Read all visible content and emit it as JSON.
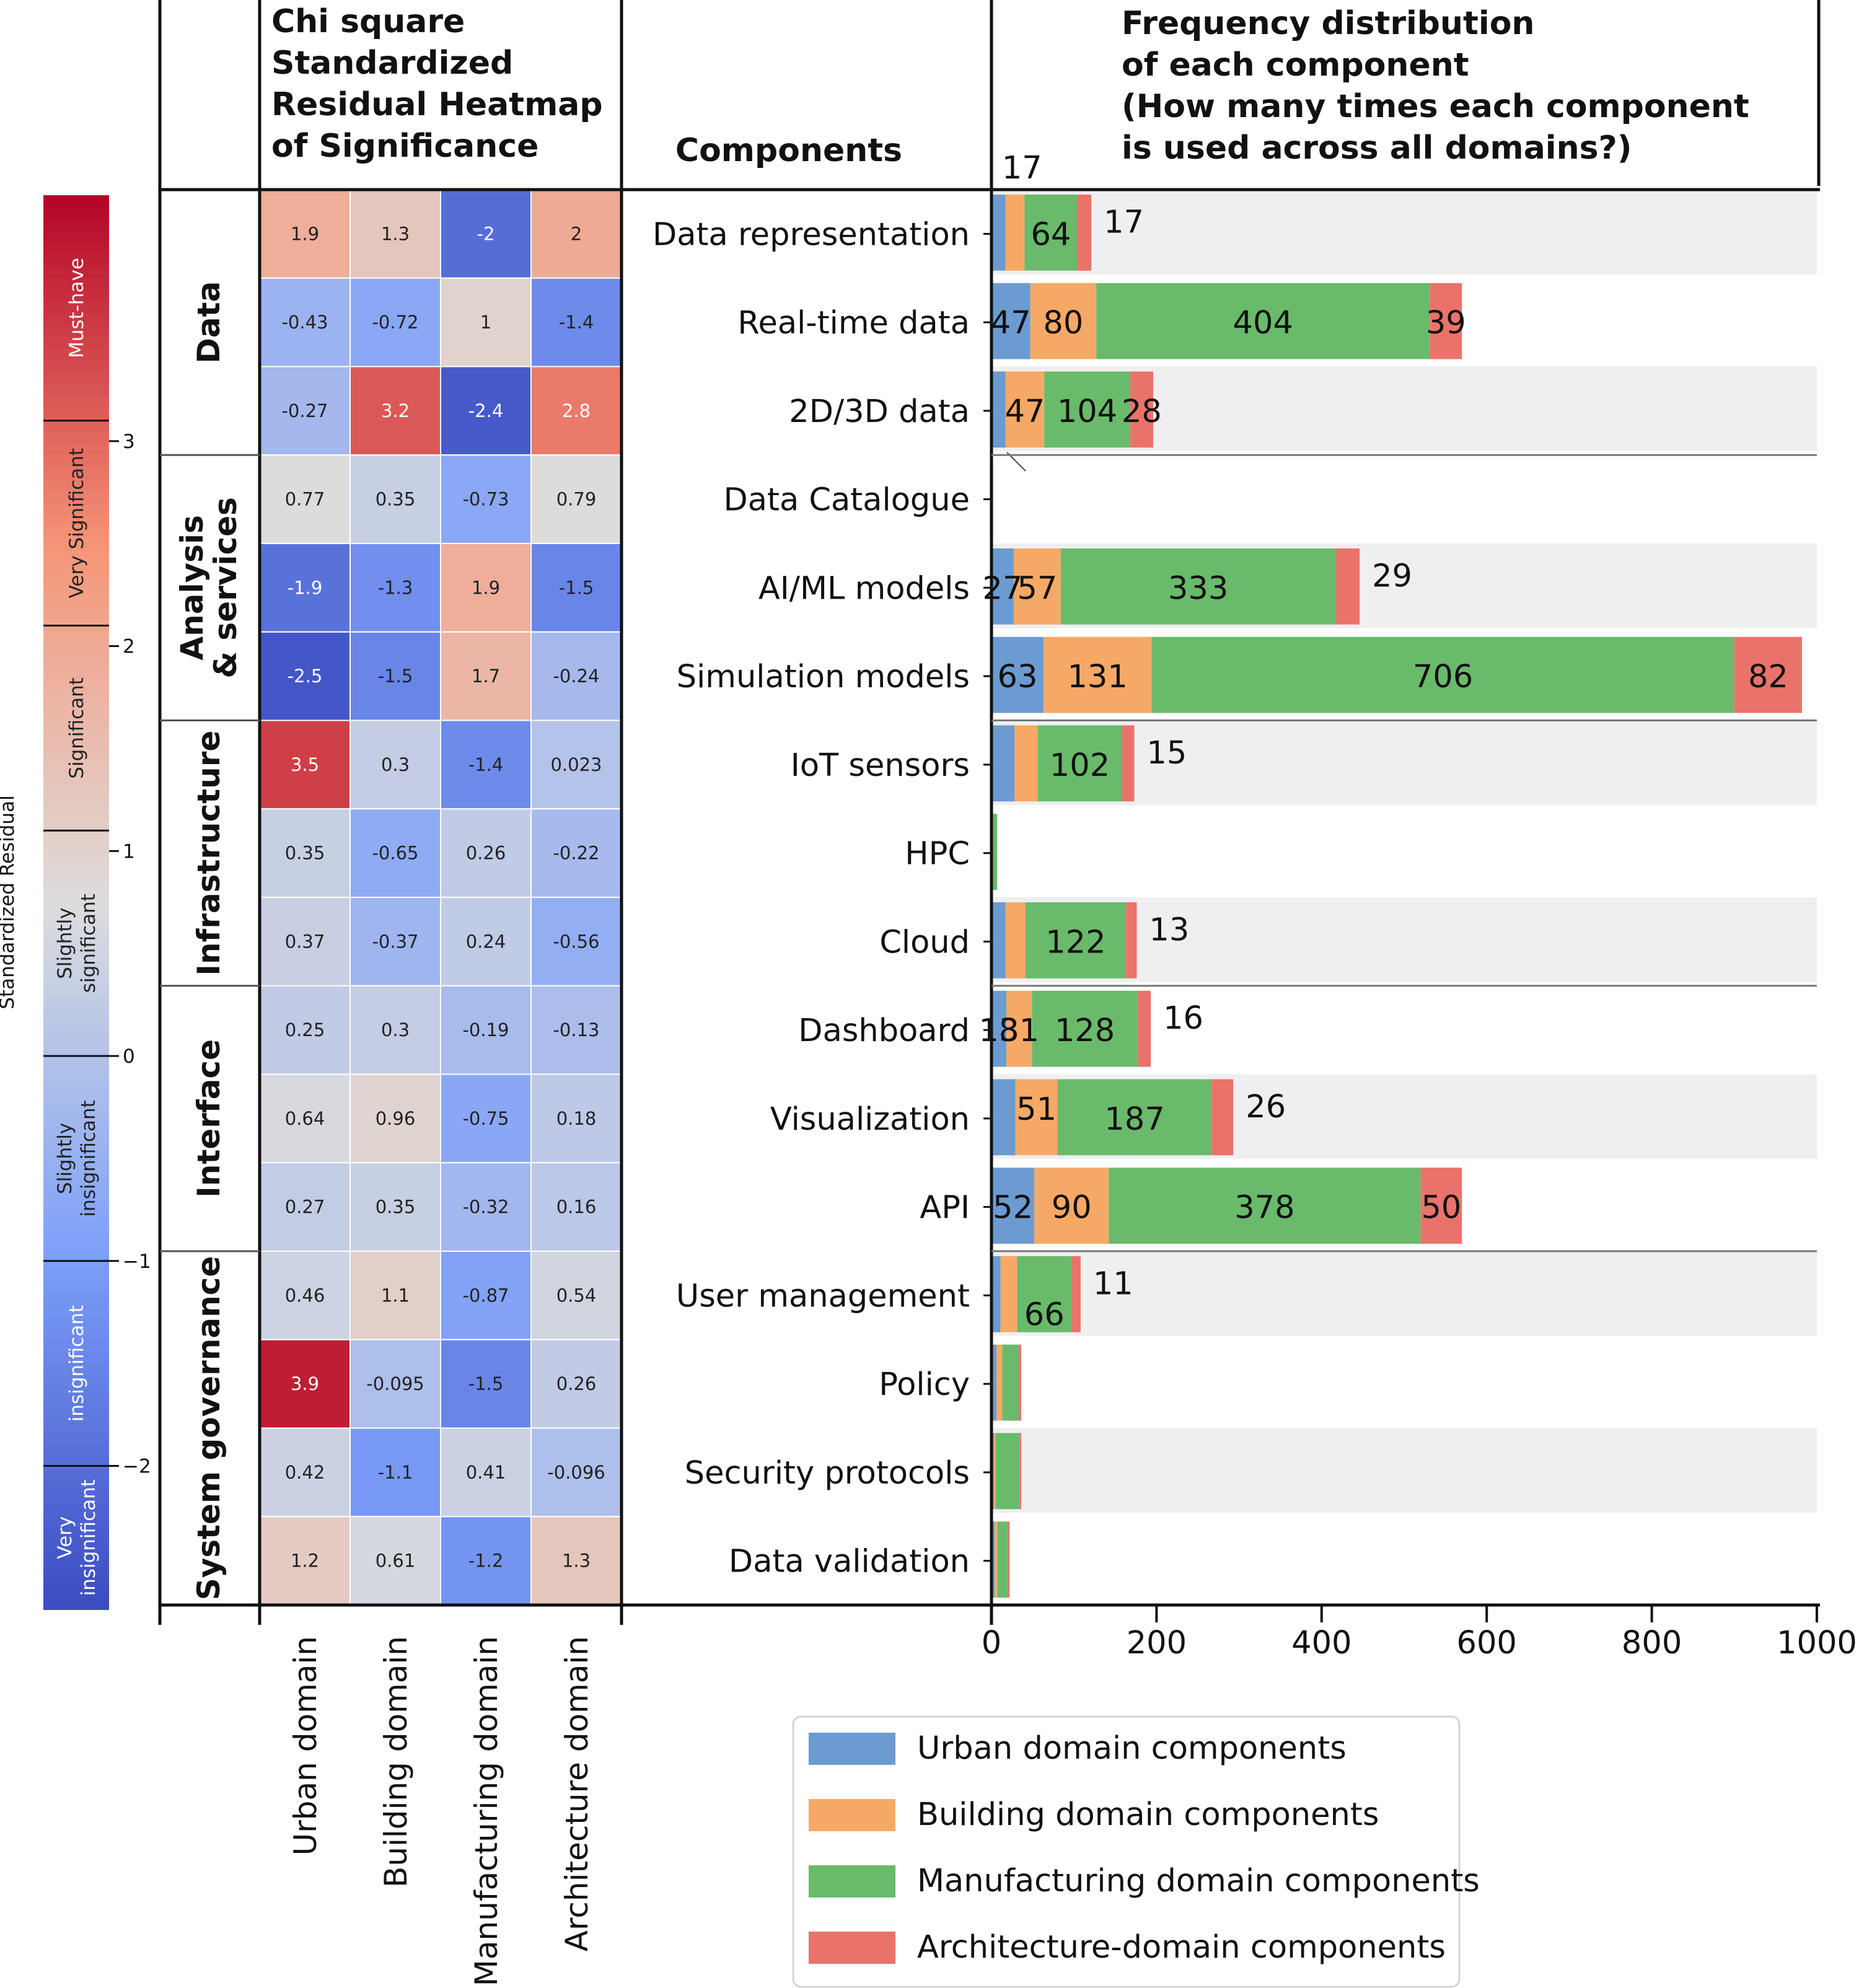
{
  "chart_data": {
    "type": "heatmap + stacked horizontal bar",
    "heatmap": {
      "title": [
        "Chi square",
        "Standardized",
        "Residual Heatmap",
        "of Significance"
      ],
      "columns": [
        "Urban domain",
        "Building domain",
        "Manufacturing domain",
        "Architecture domain"
      ],
      "rows": [
        {
          "component": "Data representation",
          "values": [
            1.9,
            1.3,
            -2,
            2
          ],
          "labels": [
            "1.9",
            "1.3",
            "-2",
            "2"
          ]
        },
        {
          "component": "Real-time data",
          "values": [
            -0.43,
            -0.72,
            1,
            -1.4
          ],
          "labels": [
            "-0.43",
            "-0.72",
            "1",
            "-1.4"
          ]
        },
        {
          "component": "2D/3D data",
          "values": [
            -0.27,
            3.2,
            -2.4,
            2.8
          ],
          "labels": [
            "-0.27",
            "3.2",
            "-2.4",
            "2.8"
          ]
        },
        {
          "component": "Data Catalogue",
          "values": [
            0.77,
            0.35,
            -0.73,
            0.79
          ],
          "labels": [
            "0.77",
            "0.35",
            "-0.73",
            "0.79"
          ]
        },
        {
          "component": "AI/ML models",
          "values": [
            -1.9,
            -1.3,
            1.9,
            -1.5
          ],
          "labels": [
            "-1.9",
            "-1.3",
            "1.9",
            "-1.5"
          ]
        },
        {
          "component": "Simulation models",
          "values": [
            -2.5,
            -1.5,
            1.7,
            -0.24
          ],
          "labels": [
            "-2.5",
            "-1.5",
            "1.7",
            "-0.24"
          ]
        },
        {
          "component": "IoT sensors",
          "values": [
            3.5,
            0.3,
            -1.4,
            0.023
          ],
          "labels": [
            "3.5",
            "0.3",
            "-1.4",
            "0.023"
          ]
        },
        {
          "component": "HPC",
          "values": [
            0.35,
            -0.65,
            0.26,
            -0.22
          ],
          "labels": [
            "0.35",
            "-0.65",
            "0.26",
            "-0.22"
          ]
        },
        {
          "component": "Cloud",
          "values": [
            0.37,
            -0.37,
            0.24,
            -0.56
          ],
          "labels": [
            "0.37",
            "-0.37",
            "0.24",
            "-0.56"
          ]
        },
        {
          "component": "Dashboard",
          "values": [
            0.25,
            0.3,
            -0.19,
            -0.13
          ],
          "labels": [
            "0.25",
            "0.3",
            "-0.19",
            "-0.13"
          ]
        },
        {
          "component": "Visualization",
          "values": [
            0.64,
            0.96,
            -0.75,
            0.18
          ],
          "labels": [
            "0.64",
            "0.96",
            "-0.75",
            "0.18"
          ]
        },
        {
          "component": "API",
          "values": [
            0.27,
            0.35,
            -0.32,
            0.16
          ],
          "labels": [
            "0.27",
            "0.35",
            "-0.32",
            "0.16"
          ]
        },
        {
          "component": "User management",
          "values": [
            0.46,
            1.1,
            -0.87,
            0.54
          ],
          "labels": [
            "0.46",
            "1.1",
            "-0.87",
            "0.54"
          ]
        },
        {
          "component": "Policy",
          "values": [
            3.9,
            -0.095,
            -1.5,
            0.26
          ],
          "labels": [
            "3.9",
            "-0.095",
            "-1.5",
            "0.26"
          ]
        },
        {
          "component": "Security protocols",
          "values": [
            0.42,
            -1.1,
            0.41,
            -0.096
          ],
          "labels": [
            "0.42",
            "-1.1",
            "0.41",
            "-0.096"
          ]
        },
        {
          "component": "Data validation",
          "values": [
            1.2,
            0.61,
            -1.2,
            1.3
          ],
          "labels": [
            "1.2",
            "0.61",
            "-1.2",
            "1.3"
          ]
        }
      ],
      "colorbar": {
        "label": "Standardized Residual",
        "range": [
          -2.7,
          4.2
        ],
        "ticks": [
          -2,
          -1,
          0,
          1,
          2,
          3
        ],
        "categories": [
          {
            "label": [
              "Must-have"
            ],
            "from": 3.1,
            "to": 4.2
          },
          {
            "label": [
              "Very Significant"
            ],
            "from": 2.1,
            "to": 3.1
          },
          {
            "label": [
              "Significant"
            ],
            "from": 1.1,
            "to": 2.1
          },
          {
            "label": [
              "Slightly",
              "significant"
            ],
            "from": 0,
            "to": 1.1
          },
          {
            "label": [
              "Slightly",
              "insignificant"
            ],
            "from": -1,
            "to": 0
          },
          {
            "label": [
              "insignificant"
            ],
            "from": -2,
            "to": -1
          },
          {
            "label": [
              "Very",
              "insignificant"
            ],
            "from": -2.7,
            "to": -2
          }
        ]
      }
    },
    "groups": [
      {
        "label": [
          "Data"
        ],
        "start": 0,
        "end": 3
      },
      {
        "label": [
          "Analysis",
          "& services"
        ],
        "start": 3,
        "end": 6
      },
      {
        "label": [
          "Infrastructure"
        ],
        "start": 6,
        "end": 9
      },
      {
        "label": [
          "Interface"
        ],
        "start": 9,
        "end": 12
      },
      {
        "label": [
          "System governance"
        ],
        "start": 12,
        "end": 16
      }
    ],
    "components_header": "Components",
    "bars": {
      "title": [
        "Frequency distribution",
        "of each component",
        "(How many times each component",
        "is used across all domains?)"
      ],
      "xlim": [
        0,
        1000
      ],
      "xticks": [
        0,
        200,
        400,
        600,
        800,
        1000
      ],
      "series": [
        {
          "name": "Urban domain components",
          "color": "#6b9bd0",
          "values": [
            17,
            47,
            17,
            0,
            27,
            63,
            28,
            0,
            17,
            18,
            29,
            52,
            11,
            6,
            3,
            4
          ]
        },
        {
          "name": "Building domain components",
          "color": "#f6a966",
          "values": [
            23,
            80,
            47,
            0,
            57,
            131,
            28,
            0,
            24,
            31,
            51,
            90,
            20,
            7,
            2,
            3
          ]
        },
        {
          "name": "Manufacturing domain components",
          "color": "#6aba6b",
          "values": [
            64,
            404,
            104,
            0,
            333,
            706,
            102,
            7,
            122,
            128,
            187,
            378,
            66,
            20,
            29,
            13
          ]
        },
        {
          "name": "Architecture-domain components",
          "color": "#e9736a",
          "values": [
            17,
            39,
            28,
            0,
            29,
            82,
            15,
            0,
            13,
            16,
            26,
            50,
            11,
            3,
            2,
            2
          ]
        }
      ],
      "labels": [
        {
          "row": 0,
          "text": "17",
          "series": 0,
          "pos": "above"
        },
        {
          "row": 0,
          "text": "64",
          "series": 2,
          "pos": "in"
        },
        {
          "row": 0,
          "text": "17",
          "series": 3,
          "pos": "after-up"
        },
        {
          "row": 1,
          "text": "47",
          "series": 0,
          "pos": "in"
        },
        {
          "row": 1,
          "text": "80",
          "series": 1,
          "pos": "in"
        },
        {
          "row": 1,
          "text": "404",
          "series": 2,
          "pos": "in"
        },
        {
          "row": 1,
          "text": "39",
          "series": 3,
          "pos": "in"
        },
        {
          "row": 2,
          "text": "47",
          "series": 1,
          "pos": "in"
        },
        {
          "row": 2,
          "text": "104",
          "series": 2,
          "pos": "in"
        },
        {
          "row": 2,
          "text": "28",
          "series": 3,
          "pos": "in"
        },
        {
          "row": 4,
          "text": "27",
          "series": 0,
          "pos": "in"
        },
        {
          "row": 4,
          "text": "57",
          "series": 1,
          "pos": "in"
        },
        {
          "row": 4,
          "text": "333",
          "series": 2,
          "pos": "in"
        },
        {
          "row": 4,
          "text": "29",
          "series": 3,
          "pos": "after-up"
        },
        {
          "row": 5,
          "text": "63",
          "series": 0,
          "pos": "in"
        },
        {
          "row": 5,
          "text": "131",
          "series": 1,
          "pos": "in"
        },
        {
          "row": 5,
          "text": "706",
          "series": 2,
          "pos": "in"
        },
        {
          "row": 5,
          "text": "82",
          "series": 3,
          "pos": "in"
        },
        {
          "row": 6,
          "text": "102",
          "series": 2,
          "pos": "in"
        },
        {
          "row": 6,
          "text": "15",
          "series": 3,
          "pos": "after-up"
        },
        {
          "row": 8,
          "text": "122",
          "series": 2,
          "pos": "in"
        },
        {
          "row": 8,
          "text": "13",
          "series": 3,
          "pos": "after-up"
        },
        {
          "row": 9,
          "text": "18",
          "series": 0,
          "pos": "in"
        },
        {
          "row": 9,
          "text": "31",
          "series": 1,
          "pos": "in"
        },
        {
          "row": 9,
          "text": "128",
          "series": 2,
          "pos": "in"
        },
        {
          "row": 9,
          "text": "16",
          "series": 3,
          "pos": "after-up"
        },
        {
          "row": 10,
          "text": "51",
          "series": 1,
          "pos": "in-up"
        },
        {
          "row": 10,
          "text": "187",
          "series": 2,
          "pos": "in"
        },
        {
          "row": 10,
          "text": "26",
          "series": 3,
          "pos": "after-up"
        },
        {
          "row": 11,
          "text": "52",
          "series": 0,
          "pos": "in"
        },
        {
          "row": 11,
          "text": "90",
          "series": 1,
          "pos": "in"
        },
        {
          "row": 11,
          "text": "378",
          "series": 2,
          "pos": "in"
        },
        {
          "row": 11,
          "text": "50",
          "series": 3,
          "pos": "in"
        },
        {
          "row": 12,
          "text": "66",
          "series": 2,
          "pos": "in-down"
        },
        {
          "row": 12,
          "text": "11",
          "series": 3,
          "pos": "after-up"
        }
      ]
    },
    "legend": {
      "position": "bottom-right"
    }
  }
}
